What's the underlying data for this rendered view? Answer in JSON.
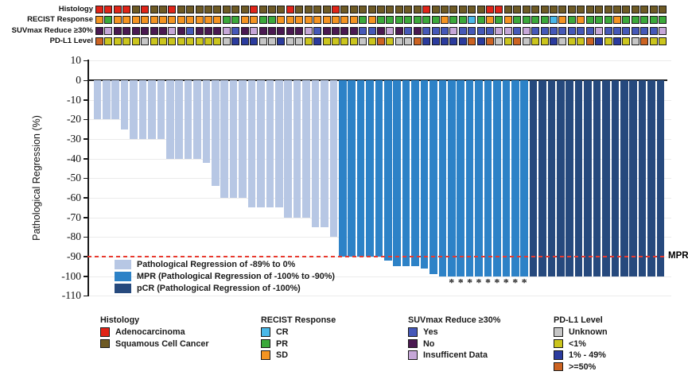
{
  "annotation_tracks": {
    "rows": [
      {
        "label": "Histology",
        "codes": "RRRRSRSSRSSSSSSSSRSSSRSSSSRSSSSSSSSSRSSSSSSRRSSSSSSSSSSSSSSSSSS",
        "palette": {
          "R": "#e02418",
          "S": "#6e5a24"
        }
      },
      {
        "label": "RECIST Response",
        "codes": "OGOOOOOOOOOOOOGGOOGGOOOOOOOOOGOGGGGGGGOGGCGOGOGGGGCOGOGGGOGGGGG",
        "palette": {
          "O": "#f49421",
          "G": "#3ba93a",
          "C": "#49b8e8"
        }
      },
      {
        "label": "SUVmax Reduce ≥30%",
        "codes": "NINNNNNNINYNNNIYNINNNNNIYNNNNYYNINYNYYYIYYYYIIYIYYYYYYYIYYYYYYI",
        "palette": {
          "Y": "#4558b8",
          "N": "#4a1951",
          "I": "#c6a7d8"
        }
      },
      {
        "label": "PD-L1 Level",
        "codes": "HLLLLULLLLLLLLUMMMUUMUULMLLLLULHLUUHMMMMMHMHULHULLMULLHMLMLUHLL",
        "palette": {
          "U": "#c6c6c6",
          "L": "#cbc51d",
          "M": "#2b3b9e",
          "H": "#cc6322"
        }
      }
    ]
  },
  "chart_data": {
    "type": "bar",
    "title": "",
    "xlabel": "",
    "ylabel": "Pathological Regression (%)",
    "ylim": [
      -110,
      10
    ],
    "yticks": [
      10,
      0,
      -10,
      -20,
      -30,
      -40,
      -50,
      -60,
      -70,
      -80,
      -90,
      -100,
      -110
    ],
    "grid": true,
    "legend_position": "bottom-left-inside",
    "series": [
      {
        "name": "Pathological Regression of -89% to 0%",
        "color": "#b7c7e4",
        "values": [
          -20,
          -20,
          -20,
          -25,
          -30,
          -30,
          -30,
          -30,
          -40,
          -40,
          -40,
          -40,
          -42,
          -54,
          -60,
          -60,
          -60,
          -65,
          -65,
          -65,
          -65,
          -70,
          -70,
          -70,
          -75,
          -75,
          -80
        ]
      },
      {
        "name": "MPR (Pathological Regression of -100% to -90%)",
        "color": "#2d82c7",
        "values": [
          -90,
          -90,
          -90,
          -90,
          -90,
          -92,
          -95,
          -95,
          -95,
          -96,
          -99,
          -100,
          -100,
          -100,
          -100,
          -100,
          -100,
          -100,
          -100,
          -100,
          -100
        ]
      },
      {
        "name": "pCR (Pathological Regression of -100%)",
        "color": "#26497d",
        "values": [
          -100,
          -100,
          -100,
          -100,
          -100,
          -100,
          -100,
          -100,
          -100,
          -100,
          -100,
          -100,
          -100,
          -100,
          -100
        ]
      }
    ],
    "threshold_line": {
      "y": -90,
      "label": "MPR",
      "color": "#e8392e",
      "style": "dashed"
    },
    "asterisk_bar_indices": [
      39,
      40,
      41,
      42,
      43,
      44,
      45,
      46,
      47
    ],
    "asterisk_symbol": "*"
  },
  "bottom_legends": [
    {
      "title": "Histology",
      "items": [
        {
          "label": "Adenocarcinoma",
          "color": "#e02418"
        },
        {
          "label": "Squamous Cell Cancer",
          "color": "#6e5a24"
        }
      ]
    },
    {
      "title": "RECIST Response",
      "items": [
        {
          "label": "CR",
          "color": "#49b8e8"
        },
        {
          "label": "PR",
          "color": "#3ba93a"
        },
        {
          "label": "SD",
          "color": "#f49421"
        }
      ]
    },
    {
      "title": "SUVmax Reduce ≥30%",
      "items": [
        {
          "label": "Yes",
          "color": "#4558b8"
        },
        {
          "label": "No",
          "color": "#4a1951"
        },
        {
          "label": "Insufficent Data",
          "color": "#c6a7d8"
        }
      ]
    },
    {
      "title": "PD-L1 Level",
      "items": [
        {
          "label": "Unknown",
          "color": "#c6c6c6"
        },
        {
          "label": "<1%",
          "color": "#cbc51d"
        },
        {
          "label": "1% - 49%",
          "color": "#2b3b9e"
        },
        {
          "label": ">=50%",
          "color": "#cc6322"
        }
      ]
    }
  ]
}
